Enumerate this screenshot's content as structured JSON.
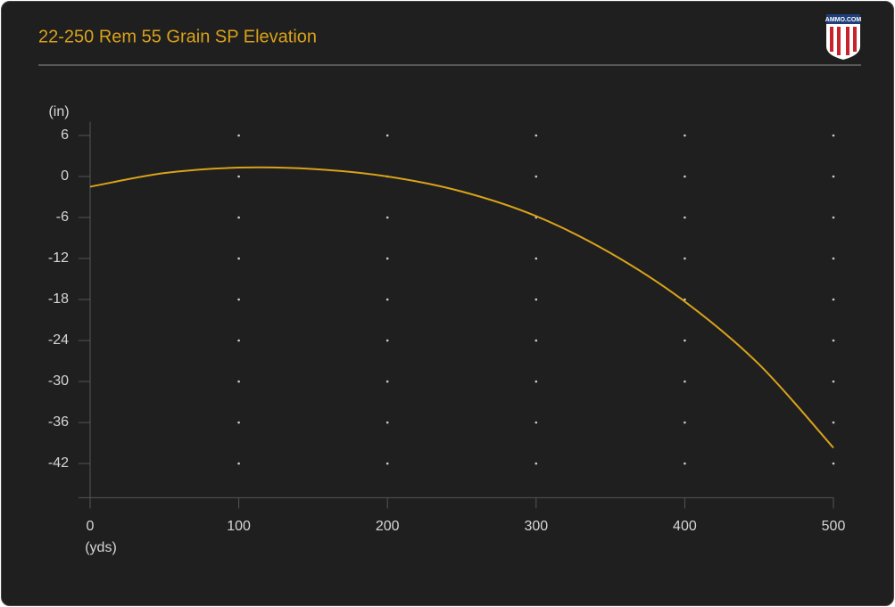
{
  "chart_data": {
    "type": "line",
    "title": "22-250 Rem 55 Grain SP Elevation",
    "logo": "AMMO.COM",
    "ylabel": "(in)",
    "xlabel": "(yds)",
    "x": [
      0,
      50,
      100,
      150,
      200,
      250,
      300,
      350,
      400,
      450,
      500
    ],
    "series": [
      {
        "name": "22-250 Rem 55 Grain SP",
        "color": "#d9a21b",
        "values": [
          -1.5,
          0.5,
          1.3,
          1.1,
          0,
          -2.2,
          -5.8,
          -11.2,
          -18.3,
          -27.5,
          -39.7
        ]
      }
    ],
    "xlim": [
      0,
      500
    ],
    "xticks": [
      0,
      100,
      200,
      300,
      400,
      500
    ],
    "ylim": [
      -47,
      8
    ],
    "yticks": [
      6,
      0,
      -6,
      -12,
      -18,
      -24,
      -30,
      -36,
      -42
    ],
    "grid": true
  }
}
